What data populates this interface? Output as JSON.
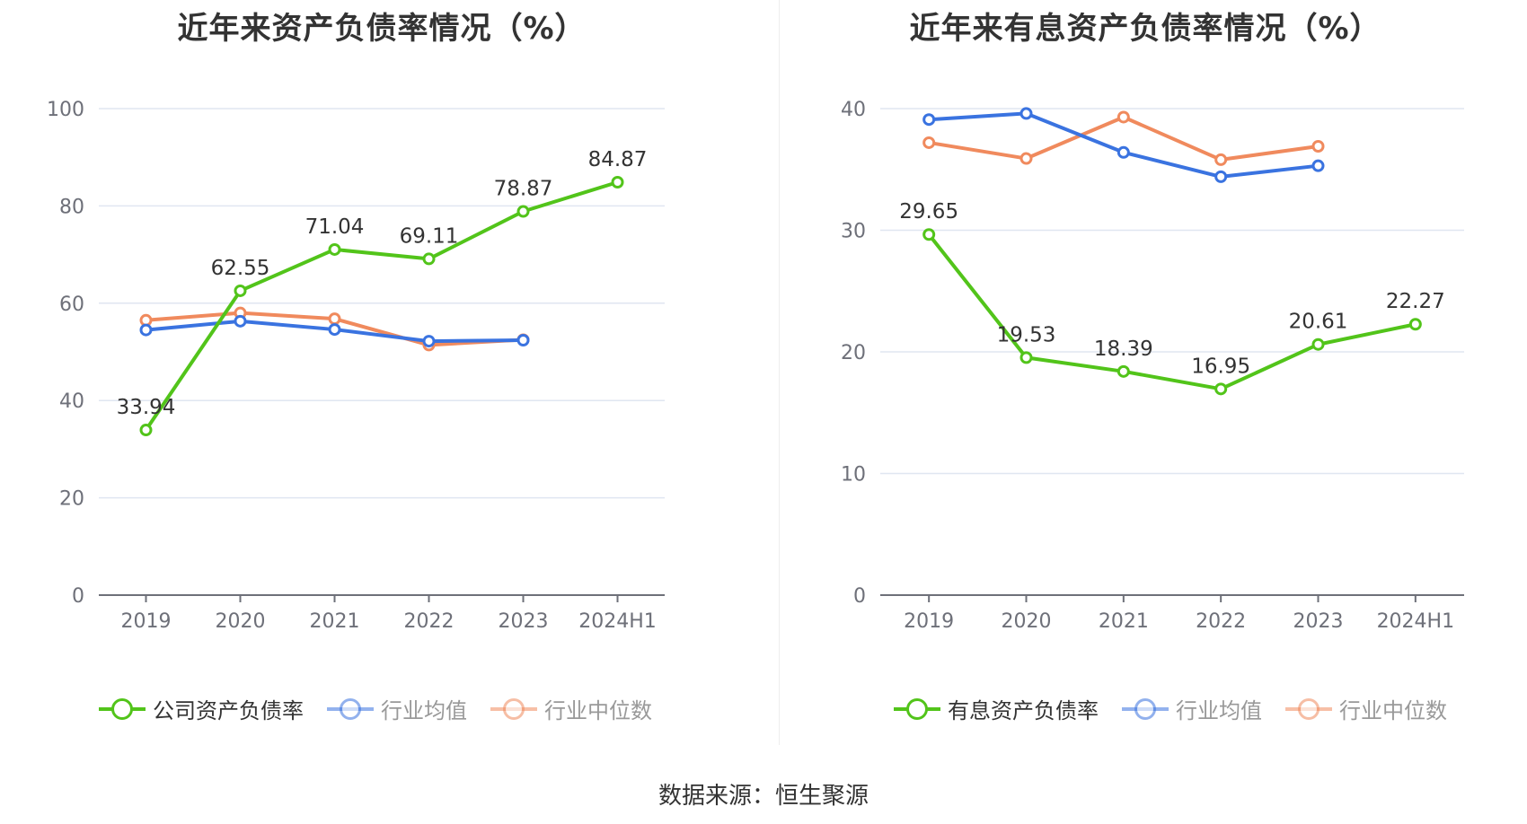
{
  "colors": {
    "company": "#52c41a",
    "industry_avg": "#3a73e0",
    "industry_median": "#f08a5d",
    "grid": "#e0e6f1",
    "axis": "#6e7079"
  },
  "source_text": "数据来源：恒生聚源",
  "chart_data": [
    {
      "type": "line",
      "title": "近年来资产负债率情况（%）",
      "categories": [
        "2019",
        "2020",
        "2021",
        "2022",
        "2023",
        "2024H1"
      ],
      "ylim": [
        0,
        100
      ],
      "yticks": [
        0,
        20,
        40,
        60,
        80,
        100
      ],
      "grid": true,
      "legend_position": "bottom",
      "series": [
        {
          "name": "公司资产负债率",
          "key": "company",
          "values": [
            33.94,
            62.55,
            71.04,
            69.11,
            78.87,
            84.87
          ],
          "labels": [
            "33.94",
            "62.55",
            "71.04",
            "69.11",
            "78.87",
            "84.87"
          ]
        },
        {
          "name": "行业均值",
          "key": "industry_avg",
          "values": [
            54.5,
            56.3,
            54.6,
            52.2,
            52.4,
            null
          ]
        },
        {
          "name": "行业中位数",
          "key": "industry_median",
          "values": [
            56.5,
            58.0,
            56.8,
            51.4,
            52.5,
            null
          ]
        }
      ]
    },
    {
      "type": "line",
      "title": "近年来有息资产负债率情况（%）",
      "categories": [
        "2019",
        "2020",
        "2021",
        "2022",
        "2023",
        "2024H1"
      ],
      "ylim": [
        0,
        40
      ],
      "yticks": [
        0,
        10,
        20,
        30,
        40
      ],
      "grid": true,
      "legend_position": "bottom",
      "series": [
        {
          "name": "有息资产负债率",
          "key": "company",
          "values": [
            29.65,
            19.53,
            18.39,
            16.95,
            20.61,
            22.27
          ],
          "labels": [
            "29.65",
            "19.53",
            "18.39",
            "16.95",
            "20.61",
            "22.27"
          ]
        },
        {
          "name": "行业均值",
          "key": "industry_avg",
          "values": [
            39.1,
            39.6,
            36.4,
            34.4,
            35.3,
            null
          ]
        },
        {
          "name": "行业中位数",
          "key": "industry_median",
          "values": [
            37.2,
            35.9,
            39.3,
            35.8,
            36.9,
            null
          ]
        }
      ]
    }
  ]
}
